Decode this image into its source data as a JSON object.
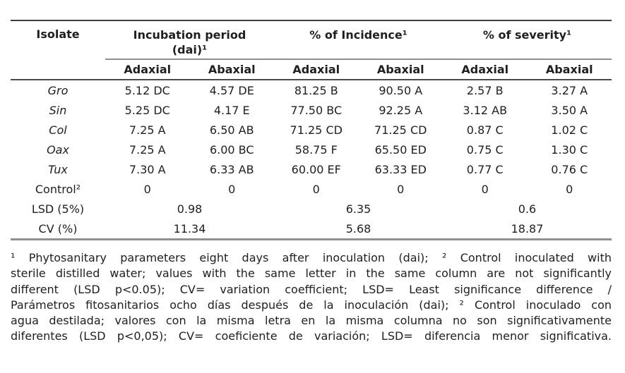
{
  "colors": {
    "rule_dark": "#4a4a4a",
    "rule_light": "#8f8f8f",
    "text": "#1f1f1f",
    "background": "#ffffff"
  },
  "table": {
    "header": {
      "isolate": "Isolate",
      "groups": [
        {
          "line1": "Incubation period",
          "line2": "(dai)¹"
        },
        {
          "line1": "% of Incidence¹",
          "line2": ""
        },
        {
          "line1": "% of severity¹",
          "line2": ""
        }
      ],
      "subheaders": [
        "Adaxial",
        "Abaxial",
        "Adaxial",
        "Abaxial",
        "Adaxial",
        "Abaxial"
      ]
    },
    "rows": [
      {
        "isolate": "Gro",
        "values": [
          "5.12 DC",
          "4.57 DE",
          "81.25 B",
          "90.50 A",
          "2.57 B",
          "3.27 A"
        ]
      },
      {
        "isolate": "Sin",
        "values": [
          "5.25 DC",
          "4.17 E",
          "77.50 BC",
          "92.25 A",
          "3.12 AB",
          "3.50 A"
        ]
      },
      {
        "isolate": "Col",
        "values": [
          "7.25 A",
          "6.50 AB",
          "71.25 CD",
          "71.25 CD",
          "0.87 C",
          "1.02 C"
        ]
      },
      {
        "isolate": "Oax",
        "values": [
          "7.25 A",
          "6.00 BC",
          "58.75 F",
          "65.50 ED",
          "0.75 C",
          "1.30 C"
        ]
      },
      {
        "isolate": "Tux",
        "values": [
          "7.30 A",
          "6.33 AB",
          "60.00 EF",
          "63.33 ED",
          "0.77 C",
          "0.76 C"
        ]
      },
      {
        "isolate": "Control²",
        "values": [
          "0",
          "0",
          "0",
          "0",
          "0",
          "0"
        ]
      }
    ],
    "summary": [
      {
        "label": "LSD (5%)",
        "values": [
          "0.98",
          "6.35",
          "0.6"
        ]
      },
      {
        "label": "CV (%)",
        "values": [
          "11.34",
          "5.68",
          "18.87"
        ]
      }
    ]
  },
  "footnote": {
    "lines": [
      "¹ Phytosanitary parameters eight days after inoculation (dai); ² Control inoculated with",
      "sterile distilled water; values with the same letter in the same column are not significantly",
      "different (LSD p<0.05); CV= variation coefficient; LSD= Least significance difference /",
      "Parámetros fitosanitarios ocho días después de la inoculación (dai); ² Control inoculado con",
      "agua destilada; valores con la misma letra en la misma columna no son significativamente",
      "diferentes (LSD p<0,05); CV= coeficiente de variación; LSD= diferencia menor significativa."
    ]
  }
}
